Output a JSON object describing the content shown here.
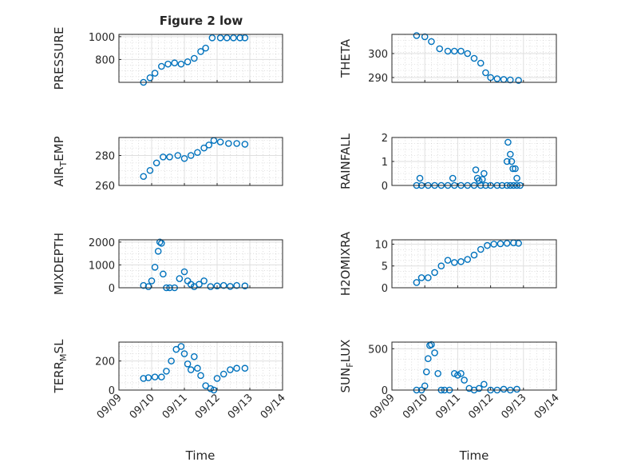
{
  "figure": {
    "title": "Figure 2 low",
    "xlabel": "Time"
  },
  "chart_data": [
    {
      "type": "scatter",
      "ylabel": "PRESSURE",
      "ylim": [
        600,
        1020
      ],
      "yticks": [
        "800",
        "1000"
      ],
      "ytick_values": [
        800,
        1000
      ],
      "xlim": [
        0,
        5
      ],
      "xticks": [
        "09/09",
        "09/10",
        "09/11",
        "09/12",
        "09/13",
        "09/14"
      ],
      "grid": true,
      "show_title": true,
      "series": [
        {
          "x": [
            0.75,
            0.95,
            1.1,
            1.3,
            1.5,
            1.7,
            1.9,
            2.1,
            2.3,
            2.5,
            2.65,
            2.85,
            3.1,
            3.3,
            3.5,
            3.7,
            3.85
          ],
          "y": [
            600,
            640,
            680,
            740,
            760,
            770,
            760,
            780,
            810,
            870,
            900,
            990,
            990,
            990,
            990,
            990,
            990
          ]
        }
      ]
    },
    {
      "type": "scatter",
      "ylabel": "THETA",
      "ylim": [
        288,
        308
      ],
      "yticks": [
        "290",
        "300"
      ],
      "ytick_values": [
        290,
        300
      ],
      "xlim": [
        0,
        5
      ],
      "xticks": [
        "09/09",
        "09/10",
        "09/11",
        "09/12",
        "09/13",
        "09/14"
      ],
      "grid": true,
      "show_title": false,
      "series": [
        {
          "x": [
            0.75,
            1.0,
            1.2,
            1.45,
            1.7,
            1.9,
            2.1,
            2.3,
            2.5,
            2.7,
            2.85,
            3.0,
            3.2,
            3.4,
            3.6,
            3.85
          ],
          "y": [
            307.5,
            307,
            305,
            302,
            301,
            301,
            301,
            300,
            298,
            296,
            292,
            290,
            289.5,
            289.2,
            289,
            288.8
          ]
        }
      ]
    },
    {
      "type": "scatter",
      "ylabel": "AIR_TEMP",
      "ylim": [
        260,
        292
      ],
      "yticks": [
        "260",
        "280"
      ],
      "ytick_values": [
        260,
        280
      ],
      "xlim": [
        0,
        5
      ],
      "xticks": [
        "09/09",
        "09/10",
        "09/11",
        "09/12",
        "09/13",
        "09/14"
      ],
      "grid": true,
      "show_title": false,
      "series": [
        {
          "x": [
            0.75,
            0.95,
            1.15,
            1.35,
            1.55,
            1.8,
            2.0,
            2.2,
            2.4,
            2.6,
            2.75,
            2.9,
            3.1,
            3.35,
            3.6,
            3.85
          ],
          "y": [
            266,
            270,
            275,
            279,
            279,
            280,
            278,
            280,
            282,
            285,
            287,
            290,
            289,
            288,
            288,
            287.5
          ]
        }
      ]
    },
    {
      "type": "scatter",
      "ylabel": "RAINFALL",
      "ylim": [
        0,
        2
      ],
      "yticks": [
        "0",
        "1",
        "2"
      ],
      "ytick_values": [
        0,
        1,
        2
      ],
      "xlim": [
        0,
        5
      ],
      "xticks": [
        "09/09",
        "09/10",
        "09/11",
        "09/12",
        "09/13",
        "09/14"
      ],
      "grid": true,
      "show_title": false,
      "series": [
        {
          "x": [
            0.75,
            0.9,
            1.1,
            1.3,
            1.5,
            1.7,
            1.9,
            2.1,
            2.3,
            2.5,
            2.7,
            2.85,
            3.0,
            3.2,
            3.35,
            3.5,
            3.6,
            3.7,
            3.8,
            3.9,
            0.85,
            1.85,
            2.55,
            2.6,
            2.65,
            2.8,
            2.75,
            3.5,
            3.53,
            3.6,
            3.64,
            3.68,
            3.75,
            3.8
          ],
          "y": [
            0,
            0,
            0,
            0,
            0,
            0,
            0,
            0,
            0,
            0,
            0,
            0,
            0,
            0,
            0,
            0,
            0,
            0,
            0,
            0,
            0.3,
            0.3,
            0.65,
            0.3,
            0.2,
            0.5,
            0.25,
            1.0,
            1.8,
            1.3,
            1.0,
            0.7,
            0.7,
            0.3
          ]
        }
      ]
    },
    {
      "type": "scatter",
      "ylabel": "MIXDEPTH",
      "ylim": [
        0,
        2100
      ],
      "yticks": [
        "0",
        "1000",
        "2000"
      ],
      "ytick_values": [
        0,
        1000,
        2000
      ],
      "xlim": [
        0,
        5
      ],
      "xticks": [
        "09/09",
        "09/10",
        "09/11",
        "09/12",
        "09/13",
        "09/14"
      ],
      "grid": true,
      "show_title": false,
      "series": [
        {
          "x": [
            0.75,
            0.9,
            1.0,
            1.1,
            1.2,
            1.25,
            1.3,
            1.35,
            1.45,
            1.55,
            1.7,
            1.85,
            2.0,
            2.1,
            2.2,
            2.3,
            2.45,
            2.6,
            2.8,
            3.0,
            3.2,
            3.4,
            3.6,
            3.85
          ],
          "y": [
            100,
            50,
            300,
            900,
            1600,
            2000,
            1950,
            600,
            0,
            0,
            0,
            400,
            700,
            300,
            150,
            50,
            150,
            300,
            50,
            80,
            100,
            60,
            100,
            80
          ]
        }
      ]
    },
    {
      "type": "scatter",
      "ylabel": "H2OMIXRA",
      "ylim": [
        0,
        11
      ],
      "yticks": [
        "0",
        "5",
        "10"
      ],
      "ytick_values": [
        0,
        5,
        10
      ],
      "xlim": [
        0,
        5
      ],
      "xticks": [
        "09/09",
        "09/10",
        "09/11",
        "09/12",
        "09/13",
        "09/14"
      ],
      "grid": true,
      "show_title": false,
      "series": [
        {
          "x": [
            0.75,
            0.9,
            1.1,
            1.3,
            1.5,
            1.7,
            1.9,
            2.1,
            2.3,
            2.5,
            2.7,
            2.9,
            3.1,
            3.3,
            3.5,
            3.7,
            3.85
          ],
          "y": [
            1.2,
            2.3,
            2.3,
            3.5,
            5.0,
            6.3,
            5.8,
            6.0,
            6.5,
            7.5,
            8.8,
            9.7,
            10.0,
            10.1,
            10.2,
            10.3,
            10.2
          ]
        }
      ]
    },
    {
      "type": "scatter",
      "ylabel": "TERR_MSL",
      "ylim": [
        0,
        330
      ],
      "yticks": [
        "0",
        "200"
      ],
      "ytick_values": [
        0,
        200
      ],
      "xlim": [
        0,
        5
      ],
      "xticks": [
        "09/09",
        "09/10",
        "09/11",
        "09/12",
        "09/13",
        "09/14"
      ],
      "grid": true,
      "show_title": false,
      "series": [
        {
          "x": [
            0.75,
            0.9,
            1.1,
            1.3,
            1.45,
            1.6,
            1.75,
            1.9,
            2.0,
            2.1,
            2.2,
            2.3,
            2.4,
            2.5,
            2.65,
            2.8,
            2.9,
            3.0,
            3.2,
            3.4,
            3.6,
            3.85
          ],
          "y": [
            80,
            85,
            90,
            90,
            130,
            200,
            280,
            300,
            250,
            180,
            140,
            230,
            150,
            100,
            30,
            10,
            0,
            80,
            110,
            140,
            150,
            150
          ]
        }
      ]
    },
    {
      "type": "scatter",
      "ylabel": "SUN_FLUX",
      "ylim": [
        0,
        580
      ],
      "yticks": [
        "0",
        "500"
      ],
      "ytick_values": [
        0,
        500
      ],
      "xlim": [
        0,
        5
      ],
      "xticks": [
        "09/09",
        "09/10",
        "09/11",
        "09/12",
        "09/13",
        "09/14"
      ],
      "grid": true,
      "show_title": false,
      "series": [
        {
          "x": [
            0.75,
            0.9,
            1.0,
            1.05,
            1.1,
            1.15,
            1.2,
            1.3,
            1.4,
            1.5,
            1.6,
            1.75,
            1.9,
            2.0,
            2.1,
            2.2,
            2.35,
            2.5,
            2.65,
            2.8,
            3.0,
            3.2,
            3.4,
            3.6,
            3.8
          ],
          "y": [
            0,
            0,
            50,
            220,
            380,
            540,
            550,
            450,
            200,
            0,
            0,
            0,
            200,
            180,
            200,
            120,
            20,
            0,
            20,
            70,
            0,
            0,
            10,
            0,
            10
          ]
        }
      ]
    }
  ]
}
